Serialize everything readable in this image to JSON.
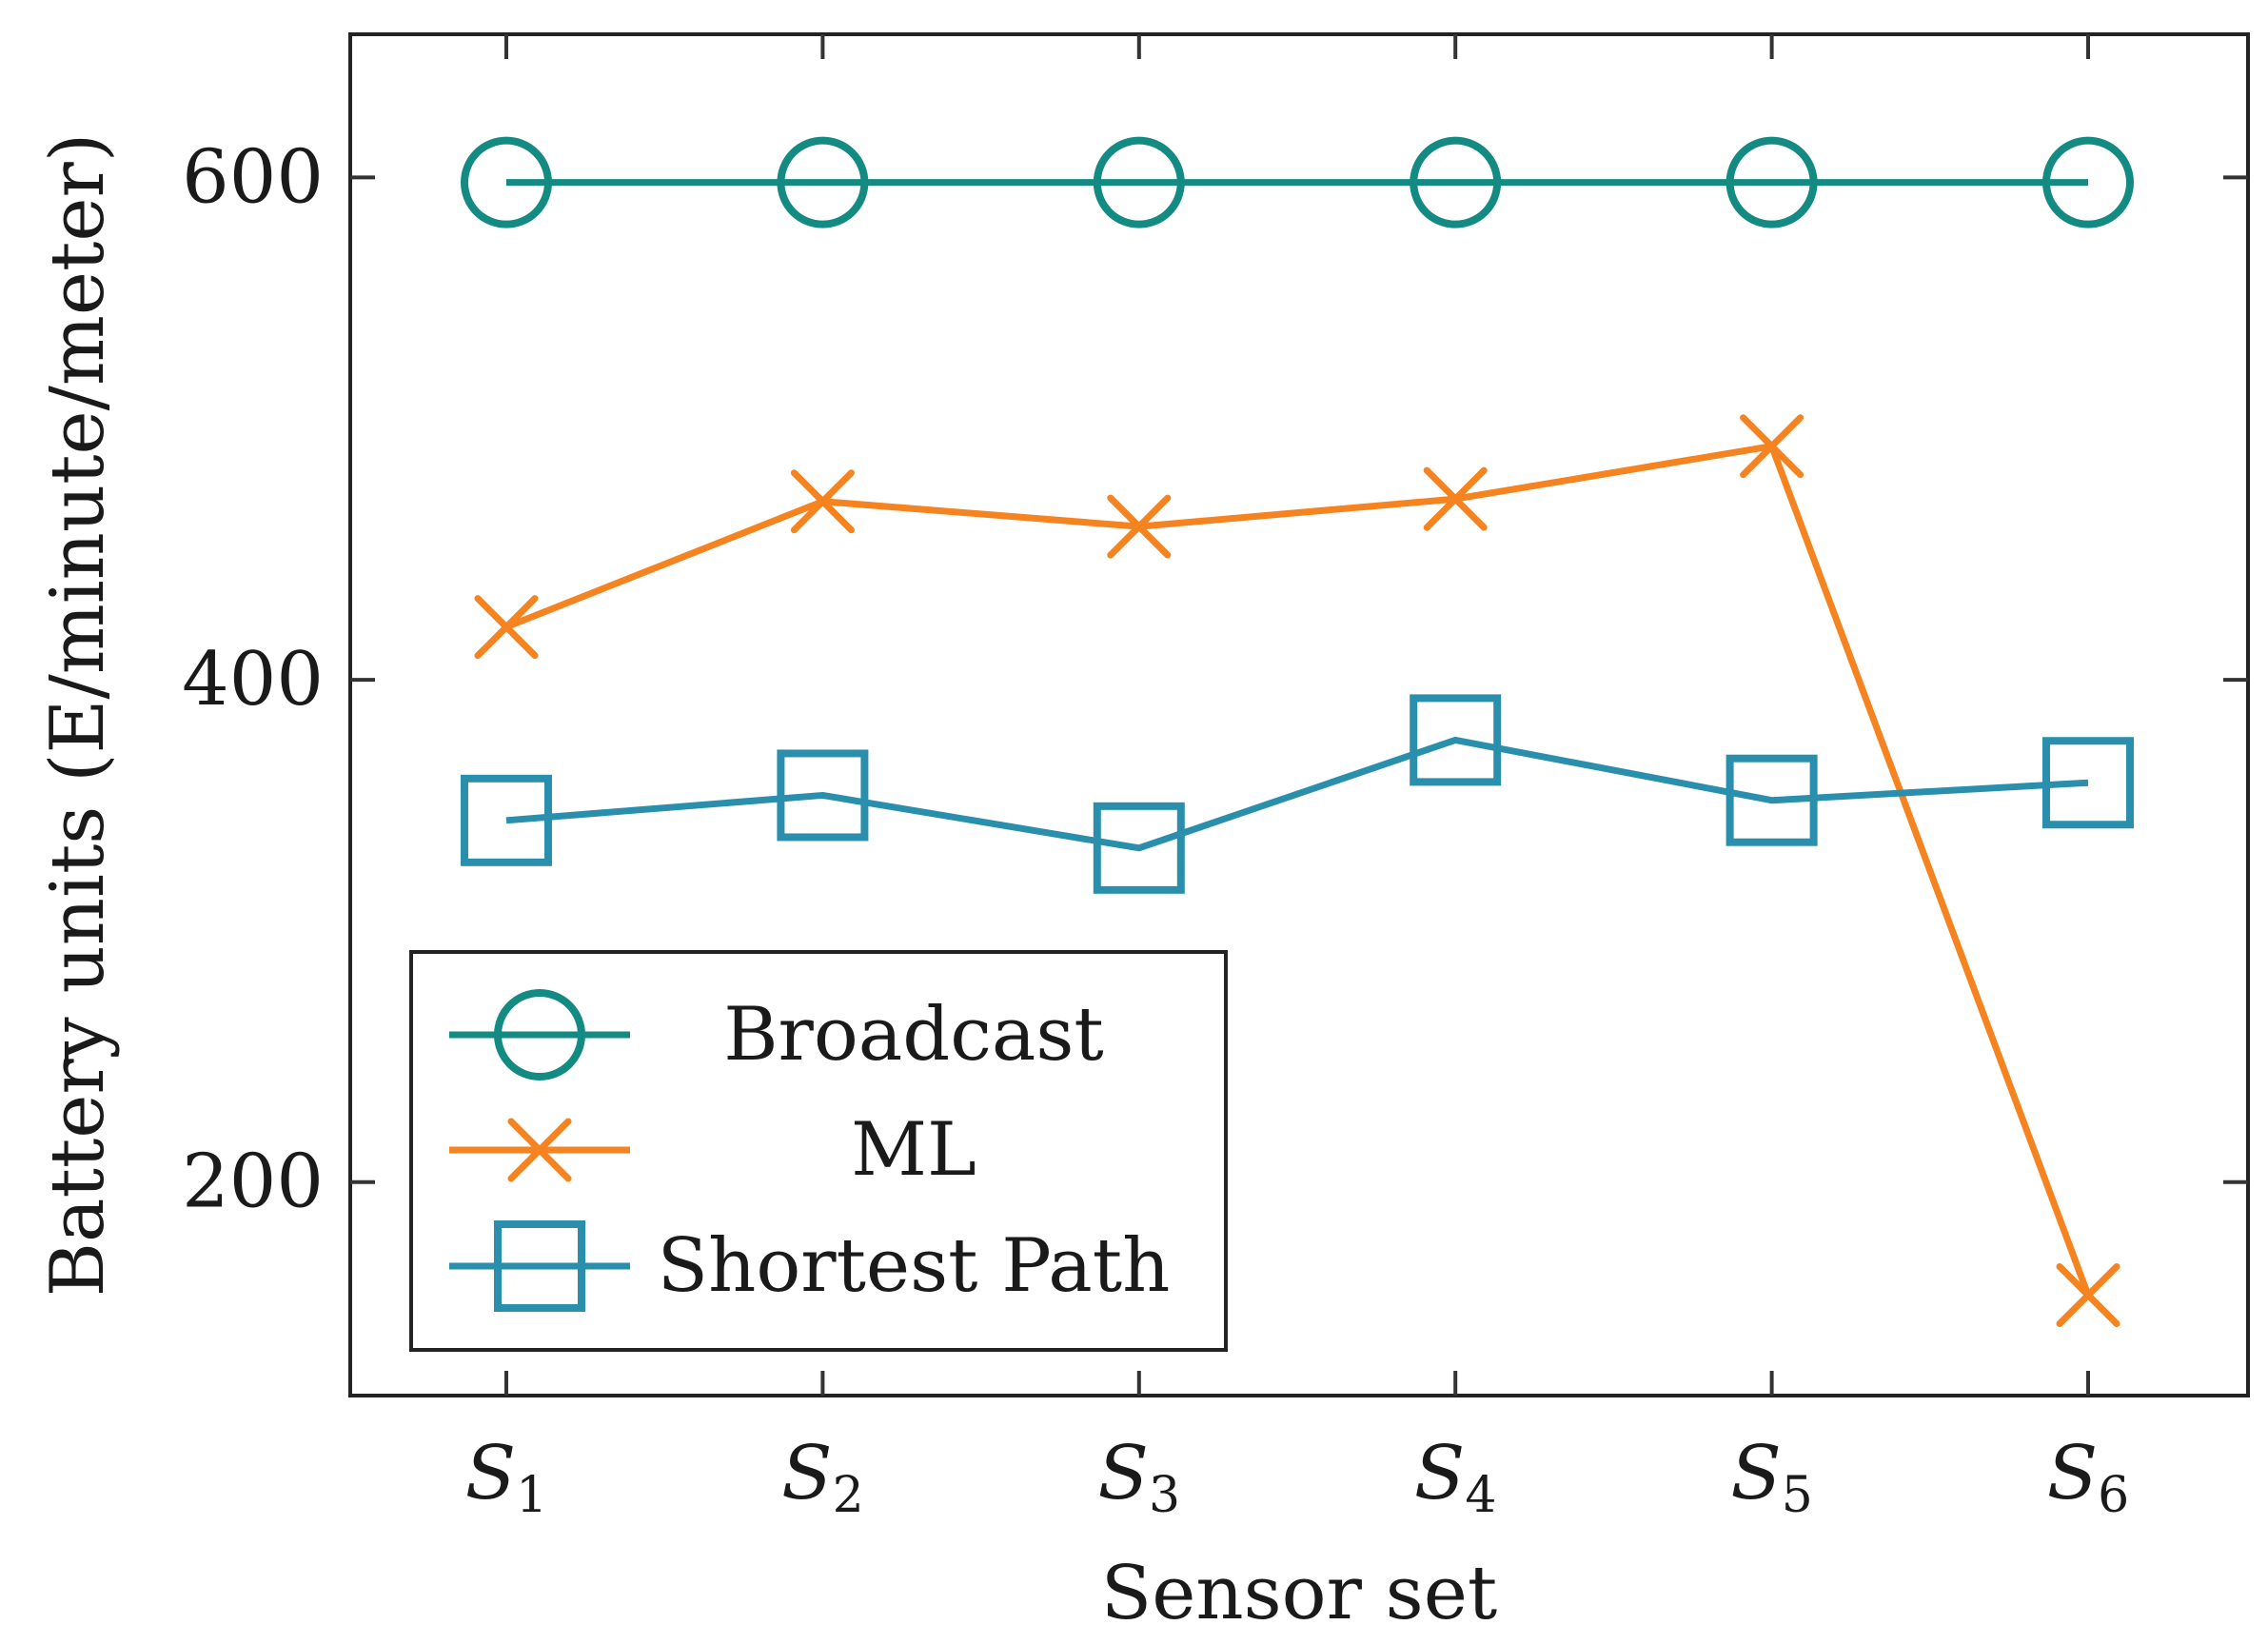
{
  "chart_data": {
    "type": "line",
    "title": "",
    "xlabel": "Sensor set",
    "ylabel": "Battery units (E/minute/meter)",
    "categories": [
      {
        "base": "S",
        "sub": "1"
      },
      {
        "base": "S",
        "sub": "2"
      },
      {
        "base": "S",
        "sub": "3"
      },
      {
        "base": "S",
        "sub": "4"
      },
      {
        "base": "S",
        "sub": "5"
      },
      {
        "base": "S",
        "sub": "6"
      }
    ],
    "ylim": [
      115,
      657
    ],
    "yticks": [
      200,
      400,
      600
    ],
    "grid": false,
    "legend_position": "bottom-left",
    "series": [
      {
        "name": "Broadcast",
        "marker": "circle",
        "color": "#138a82",
        "values": [
          598,
          598,
          598,
          598,
          598,
          598
        ]
      },
      {
        "name": "ML",
        "marker": "x",
        "color": "#f5831f",
        "values": [
          421,
          471,
          461,
          472,
          493,
          155
        ]
      },
      {
        "name": "Shortest Path",
        "marker": "square",
        "color": "#2a8fad",
        "values": [
          344,
          354,
          333,
          376,
          352,
          359
        ]
      }
    ]
  }
}
